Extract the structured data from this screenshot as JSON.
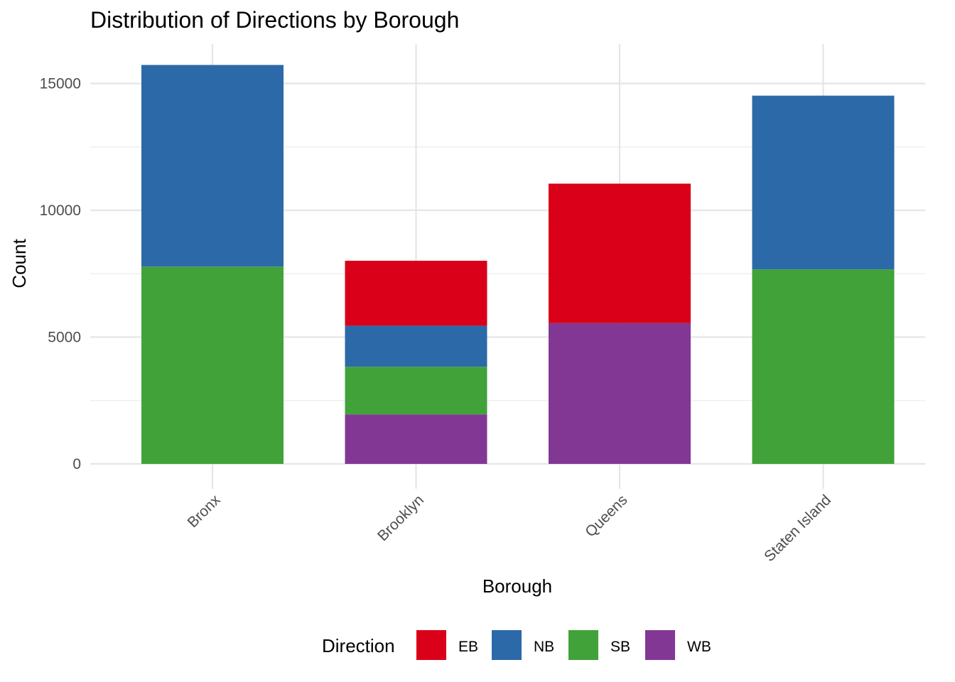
{
  "chart_data": {
    "type": "bar",
    "stacked": true,
    "title": "Distribution of Directions by Borough",
    "xlabel": "Borough",
    "ylabel": "Count",
    "categories": [
      "Bronx",
      "Brooklyn",
      "Queens",
      "Staten Island"
    ],
    "ylim": [
      0,
      16500
    ],
    "yticks": [
      0,
      5000,
      10000,
      15000
    ],
    "ytick_labels": [
      "0",
      "5000",
      "10000",
      "15000"
    ],
    "grid": true,
    "legend": {
      "title": "Direction",
      "position": "bottom"
    },
    "series": [
      {
        "name": "WB",
        "color": "#833795",
        "values": [
          0,
          1950,
          5550,
          0
        ]
      },
      {
        "name": "SB",
        "color": "#41A23A",
        "values": [
          7780,
          1880,
          0,
          7670
        ]
      },
      {
        "name": "NB",
        "color": "#2C69A8",
        "values": [
          7950,
          1620,
          0,
          6850
        ]
      },
      {
        "name": "EB",
        "color": "#DA0019",
        "values": [
          0,
          2560,
          5500,
          0
        ]
      }
    ],
    "legend_order": [
      "EB",
      "NB",
      "SB",
      "WB"
    ]
  }
}
